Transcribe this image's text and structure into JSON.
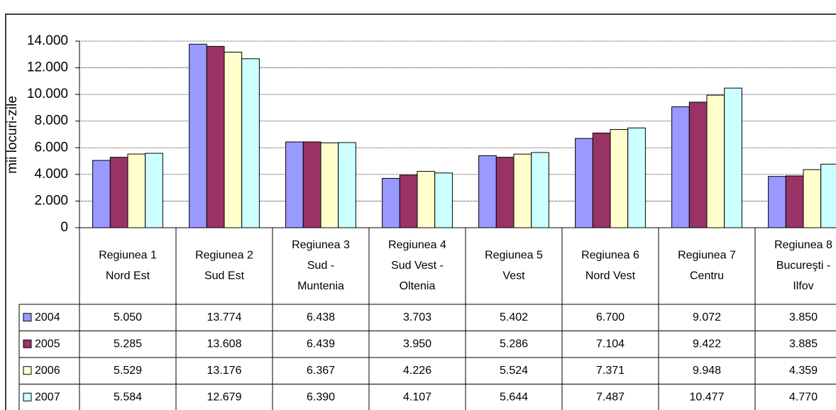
{
  "chart_data": {
    "type": "bar",
    "y_label": "mii locuri-zile",
    "categories": [
      [
        "Regiunea 1",
        "Nord Est"
      ],
      [
        "Regiunea 2",
        "Sud Est"
      ],
      [
        "Regiunea 3",
        "Sud -",
        "Muntenia"
      ],
      [
        "Regiunea 4",
        "Sud Vest -",
        "Oltenia"
      ],
      [
        "Regiunea 5",
        "Vest"
      ],
      [
        "Regiunea 6",
        "Nord Vest"
      ],
      [
        "Regiunea 7",
        "Centru"
      ],
      [
        "Regiunea 8",
        "Bucureşti -",
        "Ilfov"
      ]
    ],
    "series": [
      {
        "name": "2004",
        "color": "#9999ff",
        "values": [
          5050,
          13774,
          6438,
          3703,
          5402,
          6700,
          9072,
          3850
        ],
        "value_labels": [
          "5.050",
          "13.774",
          "6.438",
          "3.703",
          "5.402",
          "6.700",
          "9.072",
          "3.850"
        ]
      },
      {
        "name": "2005",
        "color": "#993366",
        "values": [
          5285,
          13608,
          6439,
          3950,
          5286,
          7104,
          9422,
          3885
        ],
        "value_labels": [
          "5.285",
          "13.608",
          "6.439",
          "3.950",
          "5.286",
          "7.104",
          "9.422",
          "3.885"
        ]
      },
      {
        "name": "2006",
        "color": "#ffffcc",
        "values": [
          5529,
          13176,
          6367,
          4226,
          5524,
          7371,
          9948,
          4359
        ],
        "value_labels": [
          "5.529",
          "13.176",
          "6.367",
          "4.226",
          "5.524",
          "7.371",
          "9.948",
          "4.359"
        ]
      },
      {
        "name": "2007",
        "color": "#ccffff",
        "values": [
          5584,
          12679,
          6390,
          4107,
          5644,
          7487,
          10477,
          4770
        ],
        "value_labels": [
          "5.584",
          "12.679",
          "6.390",
          "4.107",
          "5.644",
          "7.487",
          "10.477",
          "4.770"
        ]
      }
    ],
    "ylim": [
      0,
      14000
    ],
    "yticks": [
      0,
      {
        "value": 2000,
        "label": "2.000"
      },
      {
        "value": 4000,
        "label": "4.000"
      },
      {
        "value": 6000,
        "label": "6.000"
      },
      {
        "value": 8000,
        "label": "8.000"
      },
      {
        "value": 10000,
        "label": "10.000"
      },
      {
        "value": 12000,
        "label": "12.000"
      },
      {
        "value": 14000,
        "label": "14.000"
      }
    ],
    "grid": true
  }
}
